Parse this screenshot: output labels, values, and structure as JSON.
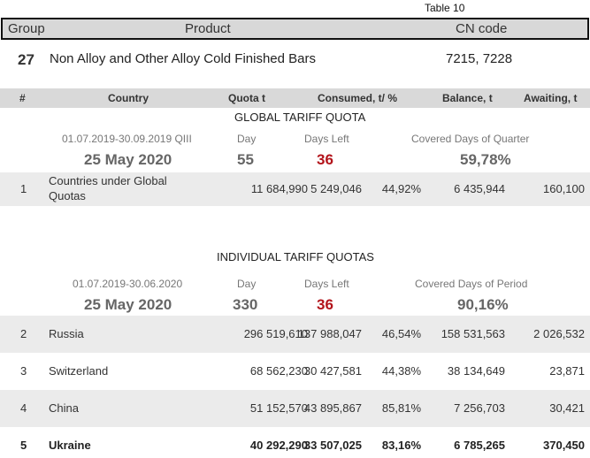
{
  "table_label": "Table 10",
  "header": {
    "group": "Group",
    "product": "Product",
    "cn_code": "CN code"
  },
  "group_info": {
    "group": "27",
    "product": "Non Alloy and Other Alloy Cold Finished Bars",
    "cn_code": "7215, 7228"
  },
  "columns": {
    "num": "#",
    "country": "Country",
    "quota": "Quota t",
    "consumed": "Consumed, t/ %",
    "balance": "Balance, t",
    "awaiting": "Awaiting, t"
  },
  "global": {
    "title": "GLOBAL TARIFF QUOTA",
    "period": "01.07.2019-30.09.2019  QIII",
    "day_label": "Day",
    "days_left_label": "Days Left",
    "covered_label": "Covered Days of Quarter",
    "date": "25 May 2020",
    "day": "55",
    "days_left": "36",
    "covered": "59,78%",
    "rows": [
      {
        "num": "1",
        "country": "Countries under Global Quotas",
        "quota": "11 684,990",
        "consumed": "5 249,046",
        "pct": "44,92%",
        "balance": "6 435,944",
        "awaiting": "160,100"
      }
    ]
  },
  "individual": {
    "title": "INDIVIDUAL TARIFF QUOTAS",
    "period": "01.07.2019-30.06.2020",
    "day_label": "Day",
    "days_left_label": "Days Left",
    "covered_label": "Covered Days of Period",
    "date": "25 May 2020",
    "day": "330",
    "days_left": "36",
    "covered": "90,16%",
    "rows": [
      {
        "num": "2",
        "country": "Russia",
        "quota": "296 519,610",
        "consumed": "137 988,047",
        "pct": "46,54%",
        "balance": "158 531,563",
        "awaiting": "2 026,532"
      },
      {
        "num": "3",
        "country": "Switzerland",
        "quota": "68 562,230",
        "consumed": "30 427,581",
        "pct": "44,38%",
        "balance": "38 134,649",
        "awaiting": "23,871"
      },
      {
        "num": "4",
        "country": "China",
        "quota": "51 152,570",
        "consumed": "43 895,867",
        "pct": "85,81%",
        "balance": "7 256,703",
        "awaiting": "30,421"
      },
      {
        "num": "5",
        "country": "Ukraine",
        "quota": "40 292,290",
        "consumed": "33 507,025",
        "pct": "83,16%",
        "balance": "6 785,265",
        "awaiting": "370,450"
      }
    ]
  }
}
